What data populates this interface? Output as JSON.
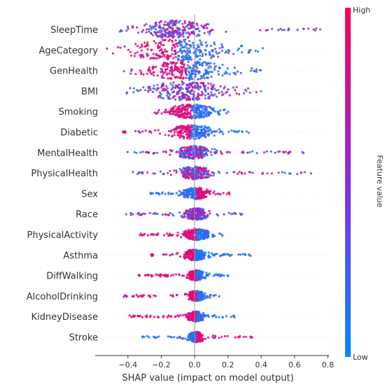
{
  "chart_data": {
    "type": "scatter",
    "subtype": "shap-beeswarm",
    "xlabel": "SHAP value (impact on model output)",
    "xlim": [
      -0.6,
      0.8
    ],
    "xticks": [
      "−0.4",
      "−0.2",
      "0.0",
      "0.2",
      "0.4",
      "0.6",
      "0.8"
    ],
    "xtick_values": [
      -0.4,
      -0.2,
      0.0,
      0.2,
      0.4,
      0.6,
      0.8
    ],
    "colorbar": {
      "label": "Feature value",
      "high": "High",
      "low": "Low"
    },
    "colors": {
      "high": "#ff0052",
      "mid": "#8a2be2",
      "low": "#008bfb",
      "zero_line": "#999999"
    },
    "features": [
      {
        "name": "SleepTime",
        "min": -0.49,
        "max": 0.76,
        "center": -0.12,
        "width": 0.16,
        "high_side": "mixed"
      },
      {
        "name": "AgeCategory",
        "min": -0.53,
        "max": 0.41,
        "center": -0.1,
        "width": 0.22,
        "high_side": "negative"
      },
      {
        "name": "GenHealth",
        "min": -0.43,
        "max": 0.4,
        "center": -0.05,
        "width": 0.18,
        "high_side": "negative"
      },
      {
        "name": "BMI",
        "min": -0.43,
        "max": 0.41,
        "center": -0.05,
        "width": 0.18,
        "high_side": "mixed"
      },
      {
        "name": "Smoking",
        "min": -0.24,
        "max": 0.21,
        "center": -0.02,
        "width": 0.1,
        "high_side": "negative"
      },
      {
        "name": "Diabetic",
        "min": -0.44,
        "max": 0.33,
        "center": -0.02,
        "width": 0.1,
        "high_side": "negative"
      },
      {
        "name": "MentalHealth",
        "min": -0.41,
        "max": 0.71,
        "center": 0.0,
        "width": 0.08,
        "high_side": "mixed"
      },
      {
        "name": "PhysicalHealth",
        "min": -0.37,
        "max": 0.74,
        "center": 0.0,
        "width": 0.08,
        "high_side": "mixed"
      },
      {
        "name": "Sex",
        "min": -0.27,
        "max": 0.21,
        "center": 0.01,
        "width": 0.06,
        "high_side": "positive"
      },
      {
        "name": "Race",
        "min": -0.42,
        "max": 0.3,
        "center": 0.01,
        "width": 0.06,
        "high_side": "mixed"
      },
      {
        "name": "PhysicalActivity",
        "min": -0.33,
        "max": 0.19,
        "center": 0.01,
        "width": 0.06,
        "high_side": "negative"
      },
      {
        "name": "Asthma",
        "min": -0.27,
        "max": 0.34,
        "center": 0.0,
        "width": 0.05,
        "high_side": "negative"
      },
      {
        "name": "DiffWalking",
        "min": -0.34,
        "max": 0.23,
        "center": 0.01,
        "width": 0.04,
        "high_side": "negative"
      },
      {
        "name": "AlcoholDrinking",
        "min": -0.44,
        "max": 0.17,
        "center": 0.01,
        "width": 0.04,
        "high_side": "negative"
      },
      {
        "name": "KidneyDisease",
        "min": -0.39,
        "max": 0.24,
        "center": 0.01,
        "width": 0.04,
        "high_side": "negative"
      },
      {
        "name": "Stroke",
        "min": -0.32,
        "max": 0.36,
        "center": 0.01,
        "width": 0.04,
        "high_side": "positive"
      }
    ]
  }
}
